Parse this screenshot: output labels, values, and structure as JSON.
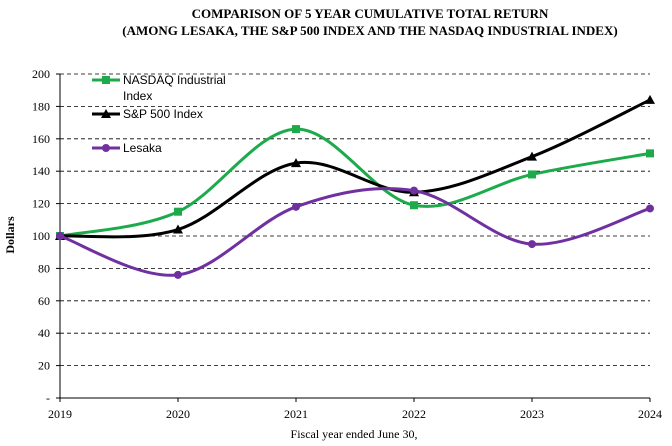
{
  "chart_data": {
    "type": "line",
    "title": "COMPARISON OF 5 YEAR CUMULATIVE TOTAL RETURN",
    "subtitle": "(AMONG LESAKA, THE S&P 500 INDEX AND THE NASDAQ INDUSTRIAL INDEX)",
    "xlabel": "Fiscal year ended June 30,",
    "ylabel": "Dollars",
    "x": [
      "2019",
      "2020",
      "2021",
      "2022",
      "2023",
      "2024"
    ],
    "ylim": [
      0,
      200
    ],
    "yticks": [
      "-",
      "20",
      "40",
      "60",
      "80",
      "100",
      "120",
      "140",
      "160",
      "180",
      "200"
    ],
    "ytick_values": [
      0,
      20,
      40,
      60,
      80,
      100,
      120,
      140,
      160,
      180,
      200
    ],
    "grid": "horizontal dashed",
    "legend_position": "top-left",
    "series": [
      {
        "name_line1": "NASDAQ Industrial",
        "name_line2": "Index",
        "values": [
          100,
          115,
          166,
          119,
          138,
          151
        ],
        "color": "#1daa4b",
        "marker": "square"
      },
      {
        "name_line1": "S&P 500 Index",
        "name_line2": "",
        "values": [
          100,
          104,
          145,
          127,
          149,
          184
        ],
        "color": "#000000",
        "marker": "triangle"
      },
      {
        "name_line1": "Lesaka",
        "name_line2": "",
        "values": [
          100,
          76,
          118,
          128,
          95,
          117
        ],
        "color": "#7030a0",
        "marker": "circle"
      }
    ]
  }
}
